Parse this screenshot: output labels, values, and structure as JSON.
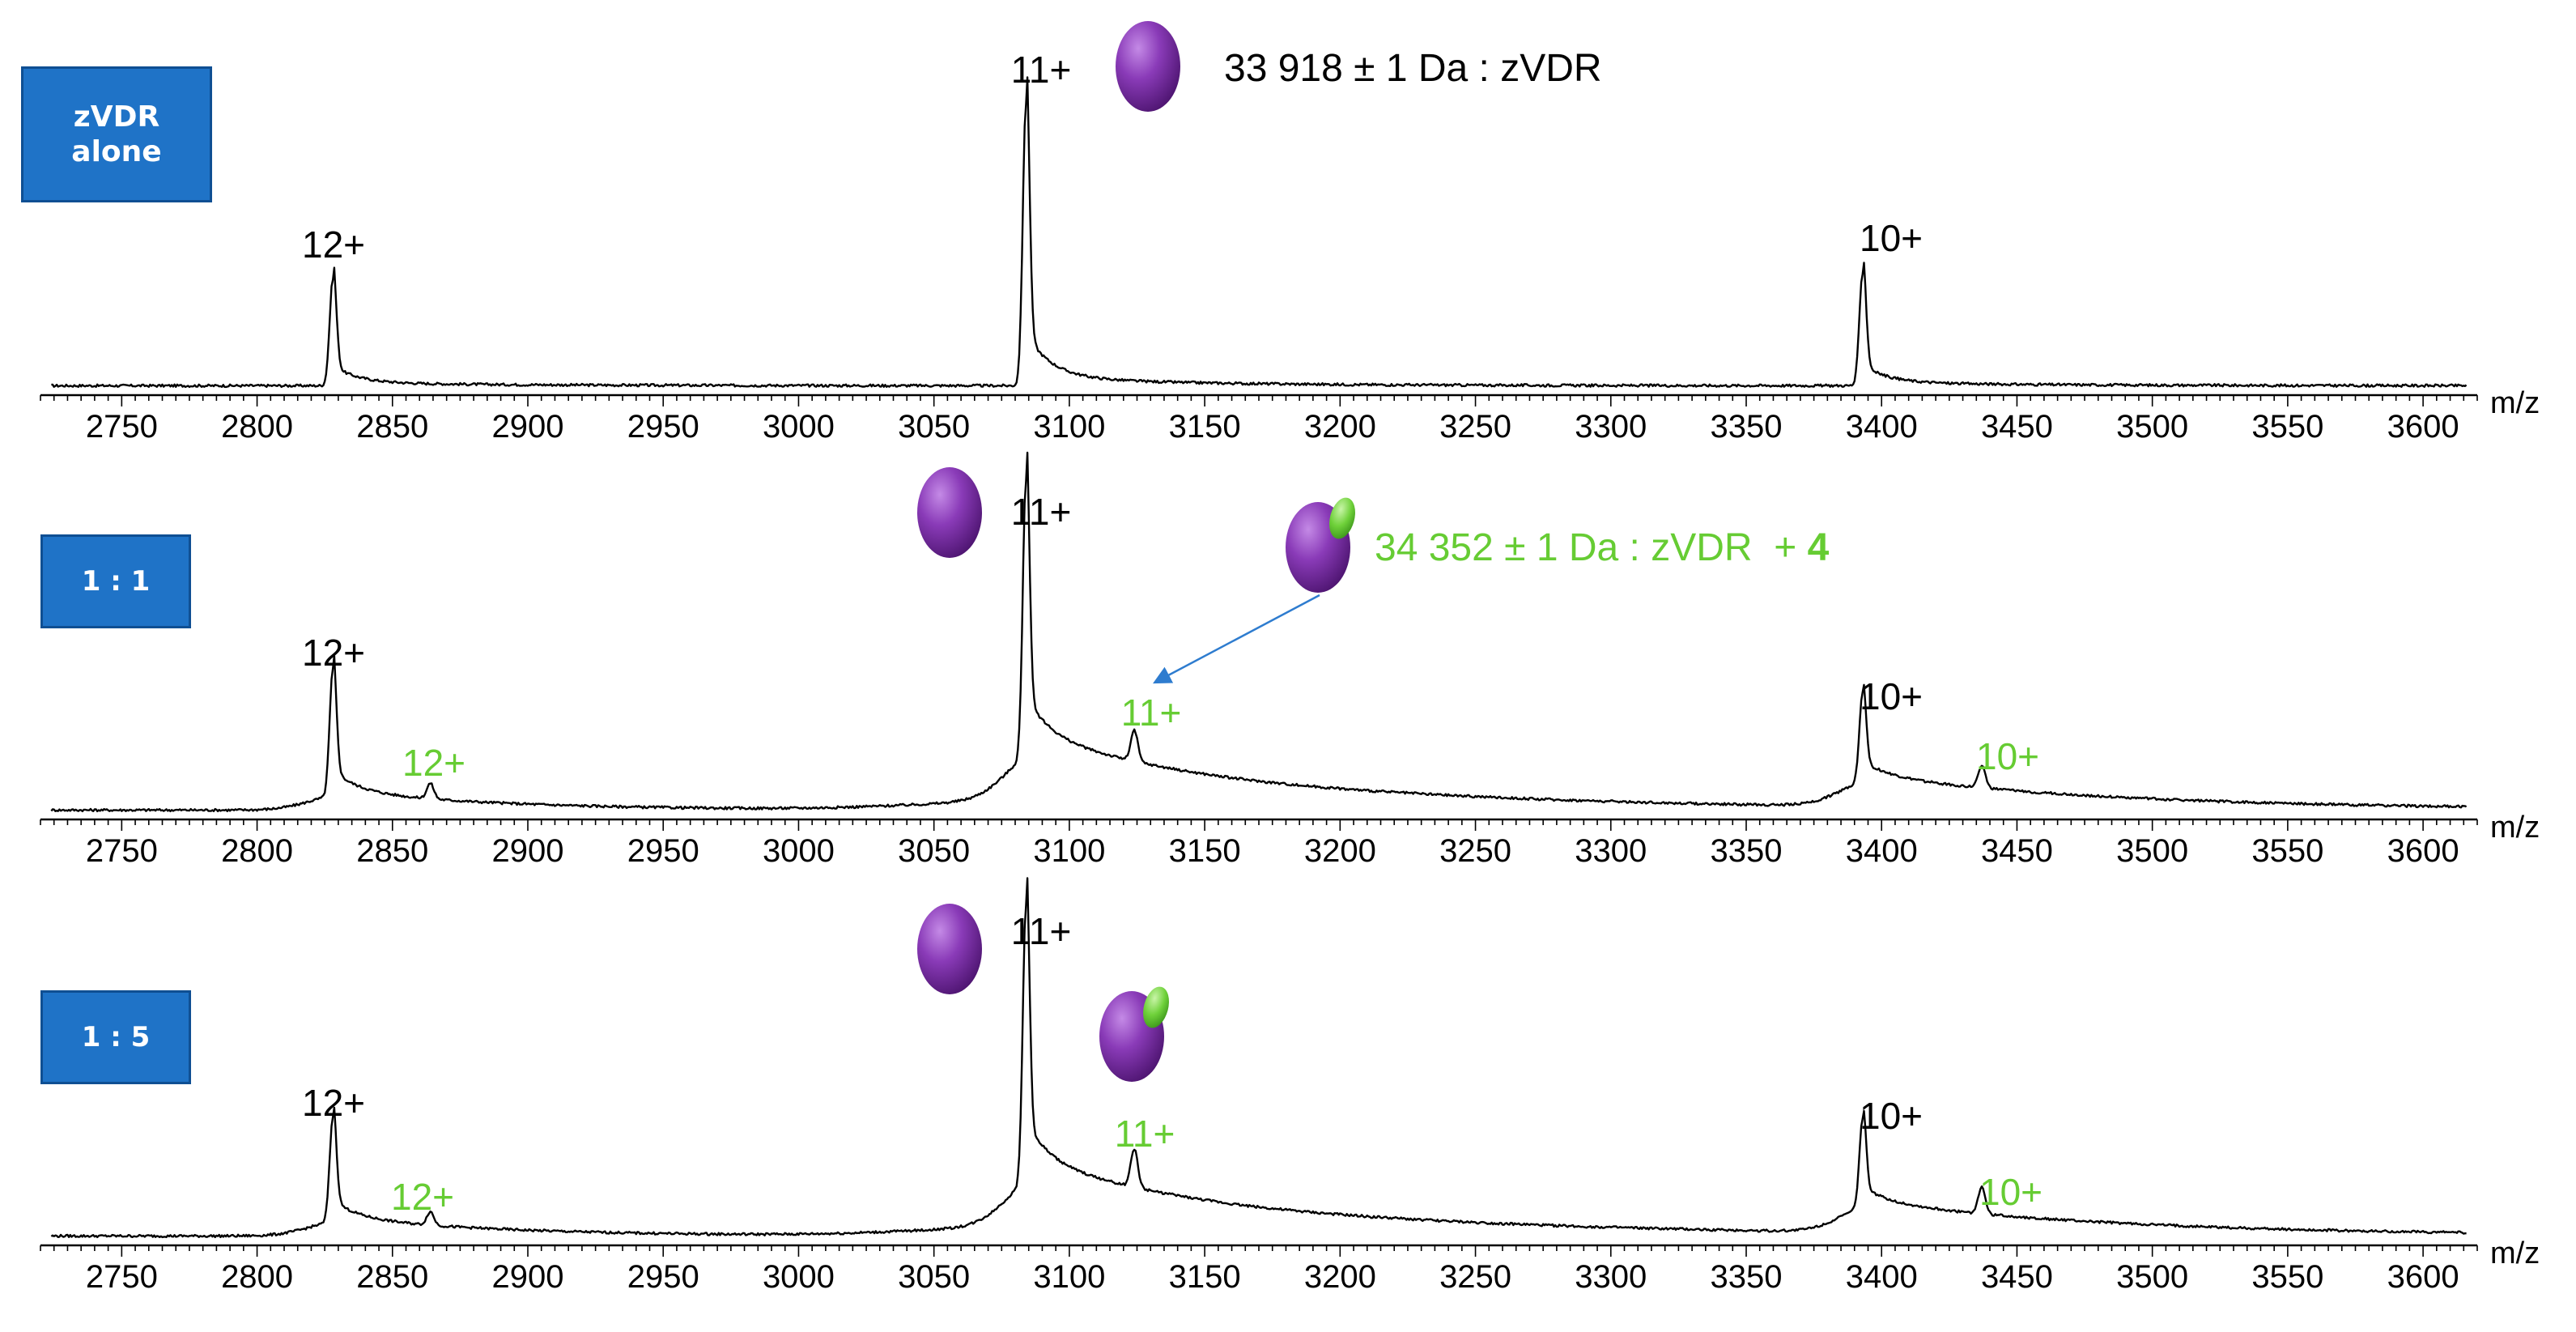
{
  "chart_data": [
    {
      "type": "line",
      "panel_label": "zVDR\nalone",
      "xlabel": "m/z",
      "xlim": [
        2720,
        3620
      ],
      "x_ticks": [
        2750,
        2800,
        2850,
        2900,
        2950,
        3000,
        3050,
        3100,
        3150,
        3200,
        3250,
        3300,
        3350,
        3400,
        3450,
        3500,
        3550,
        3600
      ],
      "peaks": [
        {
          "charge": "12+",
          "mz": 2828,
          "rel_intensity": 0.38,
          "species": "zVDR"
        },
        {
          "charge": "11+",
          "mz": 3084,
          "rel_intensity": 1.0,
          "species": "zVDR"
        },
        {
          "charge": "10+",
          "mz": 3393,
          "rel_intensity": 0.4,
          "species": "zVDR"
        }
      ],
      "peak_labels": [
        {
          "text": "12+",
          "color": "#000000"
        },
        {
          "text": "11+",
          "color": "#000000"
        },
        {
          "text": "10+",
          "color": "#000000"
        }
      ],
      "annotation": {
        "text": "33 918 ± 1 Da : zVDR",
        "color": "#000000"
      }
    },
    {
      "type": "line",
      "panel_label": "1 : 1",
      "xlabel": "m/z",
      "xlim": [
        2720,
        3620
      ],
      "x_ticks": [
        2750,
        2800,
        2850,
        2900,
        2950,
        3000,
        3050,
        3100,
        3150,
        3200,
        3250,
        3300,
        3350,
        3400,
        3450,
        3500,
        3550,
        3600
      ],
      "peaks": [
        {
          "charge": "12+",
          "mz": 2828,
          "rel_intensity": 0.46,
          "species": "zVDR"
        },
        {
          "charge": "11+",
          "mz": 3084,
          "rel_intensity": 1.0,
          "species": "zVDR"
        },
        {
          "charge": "10+",
          "mz": 3393,
          "rel_intensity": 0.32,
          "species": "zVDR"
        },
        {
          "charge": "12+",
          "mz": 2864,
          "rel_intensity": 0.08,
          "species": "zVDR + 4"
        },
        {
          "charge": "11+",
          "mz": 3124,
          "rel_intensity": 0.16,
          "species": "zVDR + 4"
        },
        {
          "charge": "10+",
          "mz": 3437,
          "rel_intensity": 0.12,
          "species": "zVDR + 4"
        }
      ],
      "peak_labels": [
        {
          "text": "12+",
          "color": "#000000"
        },
        {
          "text": "11+",
          "color": "#000000"
        },
        {
          "text": "10+",
          "color": "#000000"
        },
        {
          "text": "12+",
          "color": "#66cc33"
        },
        {
          "text": "11+",
          "color": "#66cc33"
        },
        {
          "text": "10+",
          "color": "#66cc33"
        }
      ],
      "annotation": {
        "text": "34 352 ± 1 Da : zVDR  + ",
        "bold_suffix": "4",
        "color": "#66cc33"
      }
    },
    {
      "type": "line",
      "panel_label": "1 : 5",
      "xlabel": "m/z",
      "xlim": [
        2720,
        3620
      ],
      "x_ticks": [
        2750,
        2800,
        2850,
        2900,
        2950,
        3000,
        3050,
        3100,
        3150,
        3200,
        3250,
        3300,
        3350,
        3400,
        3450,
        3500,
        3550,
        3600
      ],
      "peaks": [
        {
          "charge": "12+",
          "mz": 2828,
          "rel_intensity": 0.38,
          "species": "zVDR"
        },
        {
          "charge": "11+",
          "mz": 3084,
          "rel_intensity": 1.0,
          "species": "zVDR"
        },
        {
          "charge": "10+",
          "mz": 3393,
          "rel_intensity": 0.32,
          "species": "zVDR"
        },
        {
          "charge": "12+",
          "mz": 2864,
          "rel_intensity": 0.07,
          "species": "zVDR + 4"
        },
        {
          "charge": "11+",
          "mz": 3124,
          "rel_intensity": 0.2,
          "species": "zVDR + 4"
        },
        {
          "charge": "10+",
          "mz": 3437,
          "rel_intensity": 0.14,
          "species": "zVDR + 4"
        }
      ],
      "peak_labels": [
        {
          "text": "12+",
          "color": "#000000"
        },
        {
          "text": "11+",
          "color": "#000000"
        },
        {
          "text": "10+",
          "color": "#000000"
        },
        {
          "text": "12+",
          "color": "#66cc33"
        },
        {
          "text": "11+",
          "color": "#66cc33"
        },
        {
          "text": "10+",
          "color": "#66cc33"
        }
      ]
    }
  ],
  "colors": {
    "trace": "#000000",
    "complex_label": "#66cc33",
    "badge_fill": "#1f73c7",
    "protein": "#7b2fa6",
    "ligand": "#6fd13a",
    "arrow": "#2e7ccf"
  },
  "icons": [
    "protein-blob-icon",
    "protein-ligand-complex-icon"
  ]
}
